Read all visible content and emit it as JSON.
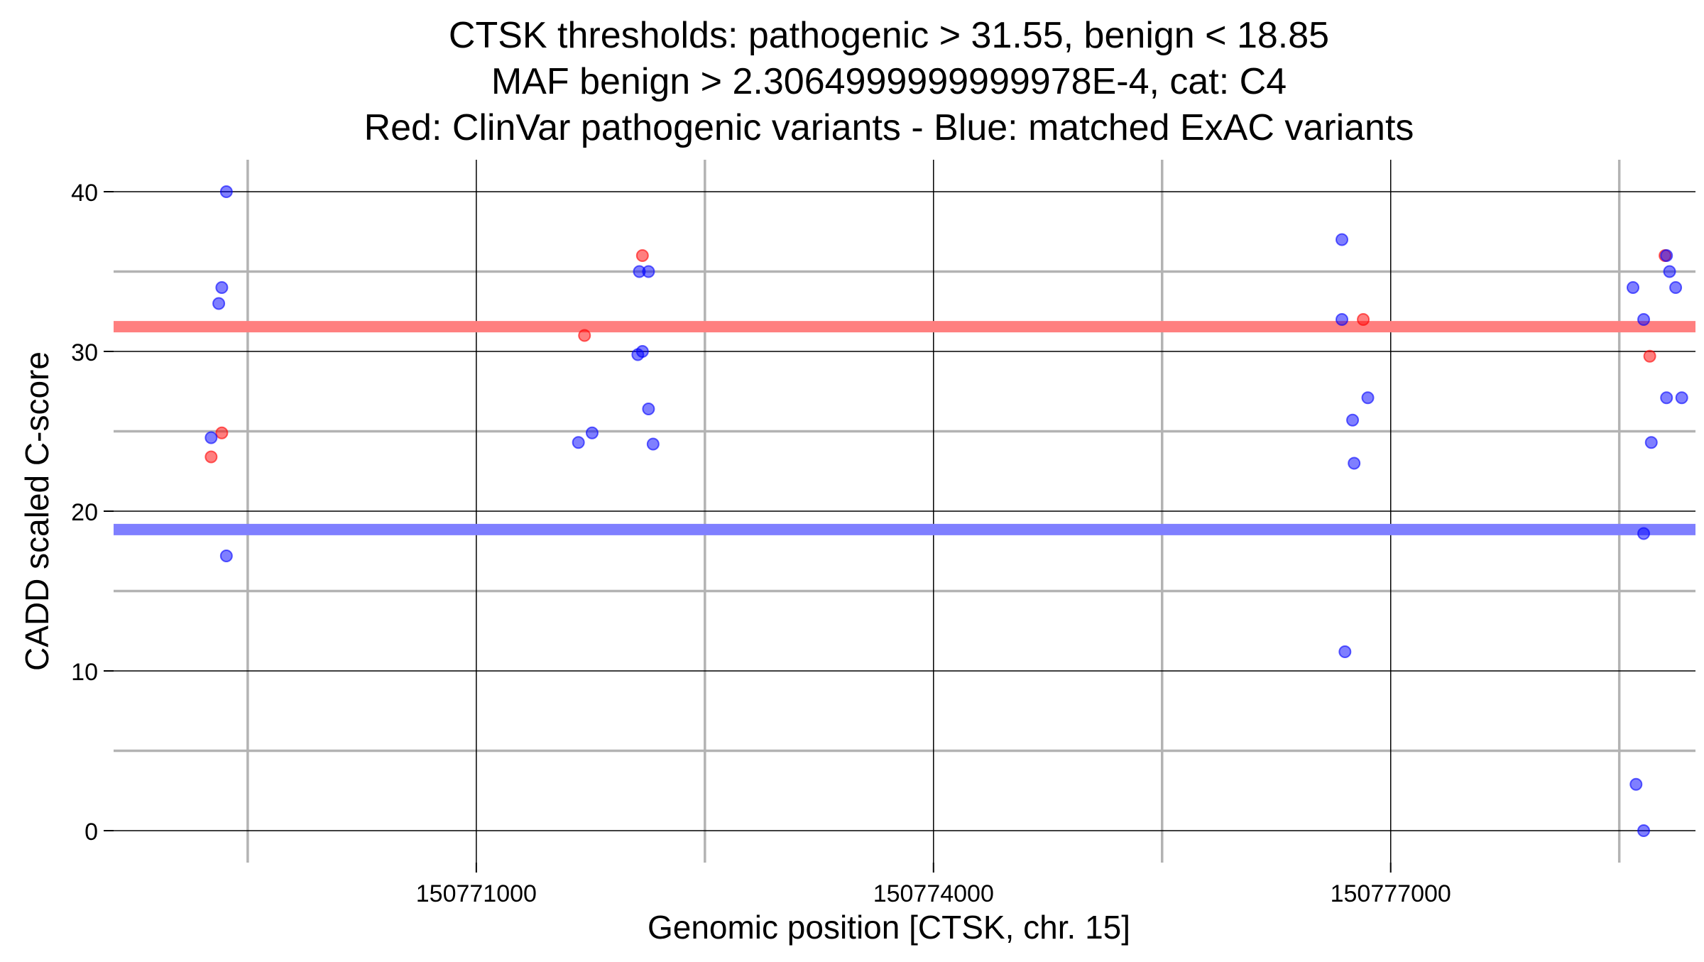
{
  "chart_data": {
    "type": "scatter",
    "title": "CTSK thresholds: pathogenic > 31.55, benign < 18.85",
    "subtitle": "MAF benign > 2.3064999999999978E-4, cat: C4",
    "caption": "Red: ClinVar pathogenic variants - Blue: matched ExAC variants",
    "xlabel": "Genomic position [CTSK, chr. 15]",
    "ylabel": "CADD scaled C-score",
    "xlim": [
      150768620,
      150779000
    ],
    "ylim": [
      -2,
      42
    ],
    "x_major_ticks": [
      150771000,
      150774000,
      150777000
    ],
    "x_tick_labels": [
      "150771000",
      "150774000",
      "150777000"
    ],
    "x_minor_ticks": [
      150769500,
      150772500,
      150775500,
      150778500
    ],
    "y_major_ticks": [
      0,
      10,
      20,
      30,
      40
    ],
    "y_tick_labels": [
      "0",
      "10",
      "20",
      "30",
      "40"
    ],
    "y_minor_ticks": [
      5,
      15,
      25,
      35
    ],
    "grid": true,
    "legend": "none",
    "thresholds": [
      {
        "name": "pathogenic",
        "value": 31.55,
        "color": "#ff7f7f"
      },
      {
        "name": "benign",
        "value": 18.85,
        "color": "#7f7fff"
      }
    ],
    "series": [
      {
        "color": "#ff0000",
        "points": [
          {
            "x": 150769330,
            "y": 24.9
          },
          {
            "x": 150769260,
            "y": 23.4
          },
          {
            "x": 150771710,
            "y": 31.0
          },
          {
            "x": 150772090,
            "y": 36.0
          },
          {
            "x": 150776820,
            "y": 32.0
          },
          {
            "x": 150778700,
            "y": 29.7
          },
          {
            "x": 150778800,
            "y": 36.0
          }
        ]
      },
      {
        "color": "#0000ff",
        "points": [
          {
            "x": 150769360,
            "y": 40.0
          },
          {
            "x": 150769330,
            "y": 34.0
          },
          {
            "x": 150769310,
            "y": 33.0
          },
          {
            "x": 150769260,
            "y": 24.6
          },
          {
            "x": 150769360,
            "y": 17.2
          },
          {
            "x": 150771670,
            "y": 24.3
          },
          {
            "x": 150771760,
            "y": 24.9
          },
          {
            "x": 150772070,
            "y": 35.0
          },
          {
            "x": 150772130,
            "y": 35.0
          },
          {
            "x": 150772060,
            "y": 29.8
          },
          {
            "x": 150772090,
            "y": 30.0
          },
          {
            "x": 150772130,
            "y": 26.4
          },
          {
            "x": 150772160,
            "y": 24.2
          },
          {
            "x": 150776680,
            "y": 37.0
          },
          {
            "x": 150776680,
            "y": 32.0
          },
          {
            "x": 150776750,
            "y": 25.7
          },
          {
            "x": 150776760,
            "y": 23.0
          },
          {
            "x": 150776850,
            "y": 27.1
          },
          {
            "x": 150776700,
            "y": 11.2
          },
          {
            "x": 150778590,
            "y": 34.0
          },
          {
            "x": 150778660,
            "y": 32.0
          },
          {
            "x": 150778660,
            "y": 18.6
          },
          {
            "x": 150778710,
            "y": 24.3
          },
          {
            "x": 150778810,
            "y": 36.0
          },
          {
            "x": 150778830,
            "y": 35.0
          },
          {
            "x": 150778870,
            "y": 34.0
          },
          {
            "x": 150778810,
            "y": 27.1
          },
          {
            "x": 150778910,
            "y": 27.1
          },
          {
            "x": 150778610,
            "y": 2.9
          },
          {
            "x": 150778660,
            "y": 0.0
          }
        ]
      }
    ]
  }
}
